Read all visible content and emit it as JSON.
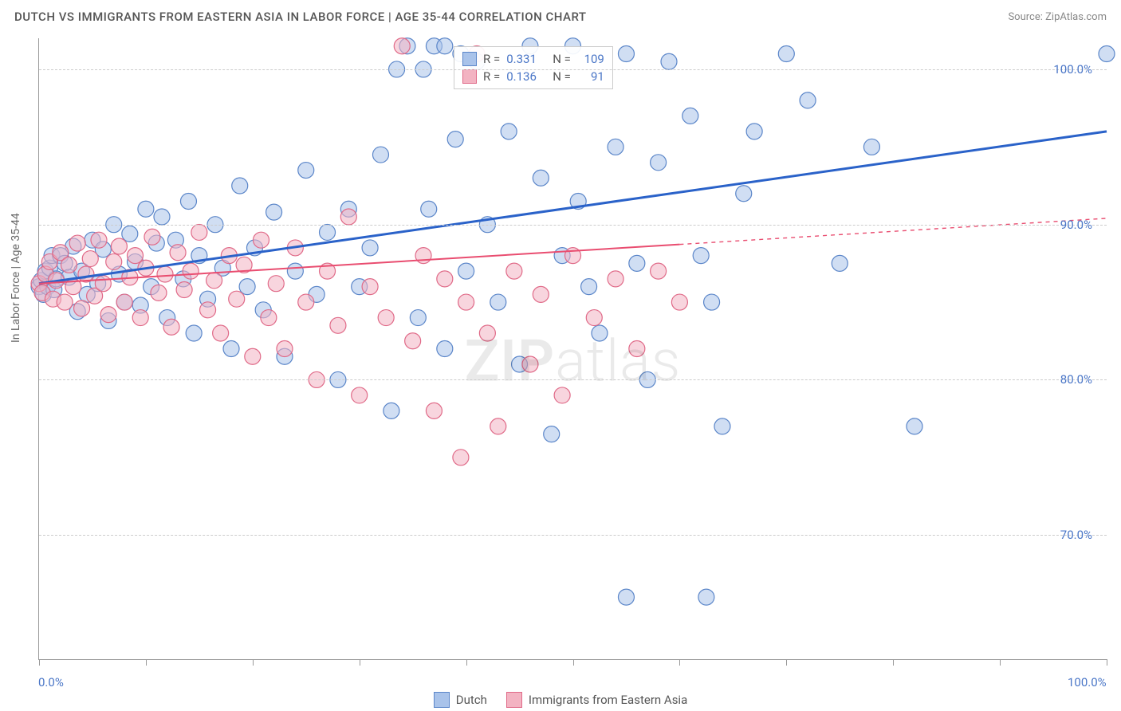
{
  "header": {
    "title": "DUTCH VS IMMIGRANTS FROM EASTERN ASIA IN LABOR FORCE | AGE 35-44 CORRELATION CHART",
    "source_label": "Source:",
    "source_name": "ZipAtlas.com"
  },
  "axes": {
    "y_label": "In Labor Force | Age 35-44",
    "x_min": 0,
    "x_max": 100,
    "y_min": 62,
    "y_max": 102,
    "x_ticks": [
      0,
      10,
      20,
      30,
      40,
      50,
      60,
      70,
      80,
      90,
      100
    ],
    "x_tick_labels": {
      "0": "0.0%",
      "100": "100.0%"
    },
    "y_gridlines": [
      70,
      80,
      90,
      100
    ],
    "y_tick_labels": {
      "70": "70.0%",
      "80": "80.0%",
      "90": "90.0%",
      "100": "100.0%"
    }
  },
  "watermark": {
    "prefix": "ZIP",
    "suffix": "atlas"
  },
  "series": [
    {
      "key": "dutch",
      "label": "Dutch",
      "fill": "#a9c3ea",
      "stroke": "#5b86c9",
      "fill_opacity": 0.55,
      "line_color": "#2a62c9",
      "line_width": 3,
      "R": "0.331",
      "N": "109",
      "trend": {
        "x1": 0,
        "y1": 86.2,
        "x2": 100,
        "y2": 96.0,
        "solid_to_x": 100
      },
      "points": [
        [
          0.0,
          86.0
        ],
        [
          0.2,
          86.4
        ],
        [
          0.4,
          85.5
        ],
        [
          0.6,
          87.0
        ],
        [
          0.8,
          86.0
        ],
        [
          1.0,
          87.2
        ],
        [
          1.2,
          88.0
        ],
        [
          1.4,
          85.8
        ],
        [
          1.6,
          86.5
        ],
        [
          2.0,
          88.0
        ],
        [
          2.4,
          87.5
        ],
        [
          2.8,
          86.6
        ],
        [
          3.2,
          88.6
        ],
        [
          3.6,
          84.4
        ],
        [
          4.0,
          87.0
        ],
        [
          4.5,
          85.5
        ],
        [
          5.0,
          89.0
        ],
        [
          5.5,
          86.2
        ],
        [
          6.0,
          88.4
        ],
        [
          6.5,
          83.8
        ],
        [
          7.0,
          90.0
        ],
        [
          7.5,
          86.8
        ],
        [
          8.0,
          85.0
        ],
        [
          8.5,
          89.4
        ],
        [
          9.0,
          87.6
        ],
        [
          9.5,
          84.8
        ],
        [
          10.0,
          91.0
        ],
        [
          10.5,
          86.0
        ],
        [
          11.0,
          88.8
        ],
        [
          11.5,
          90.5
        ],
        [
          12.0,
          84.0
        ],
        [
          12.8,
          89.0
        ],
        [
          13.5,
          86.5
        ],
        [
          14.0,
          91.5
        ],
        [
          14.5,
          83.0
        ],
        [
          15.0,
          88.0
        ],
        [
          15.8,
          85.2
        ],
        [
          16.5,
          90.0
        ],
        [
          17.2,
          87.2
        ],
        [
          18.0,
          82.0
        ],
        [
          18.8,
          92.5
        ],
        [
          19.5,
          86.0
        ],
        [
          20.2,
          88.5
        ],
        [
          21.0,
          84.5
        ],
        [
          22.0,
          90.8
        ],
        [
          23.0,
          81.5
        ],
        [
          24.0,
          87.0
        ],
        [
          25.0,
          93.5
        ],
        [
          26.0,
          85.5
        ],
        [
          27.0,
          89.5
        ],
        [
          28.0,
          80.0
        ],
        [
          29.0,
          91.0
        ],
        [
          30.0,
          86.0
        ],
        [
          31.0,
          88.5
        ],
        [
          32.0,
          94.5
        ],
        [
          33.0,
          78.0
        ],
        [
          33.5,
          100.0
        ],
        [
          34.5,
          101.5
        ],
        [
          35.5,
          84.0
        ],
        [
          36.0,
          100.0
        ],
        [
          36.5,
          91.0
        ],
        [
          37.0,
          101.5
        ],
        [
          38.0,
          82.0
        ],
        [
          38.0,
          101.5
        ],
        [
          39.0,
          95.5
        ],
        [
          39.5,
          101.0
        ],
        [
          40.0,
          87.0
        ],
        [
          41.0,
          100.5
        ],
        [
          42.0,
          90.0
        ],
        [
          43.0,
          85.0
        ],
        [
          44.0,
          96.0
        ],
        [
          45.0,
          81.0
        ],
        [
          46.0,
          101.5
        ],
        [
          47.0,
          93.0
        ],
        [
          48.0,
          76.5
        ],
        [
          49.0,
          88.0
        ],
        [
          50.0,
          101.5
        ],
        [
          50.5,
          91.5
        ],
        [
          51.5,
          86.0
        ],
        [
          52.5,
          83.0
        ],
        [
          54.0,
          95.0
        ],
        [
          55.0,
          101.0
        ],
        [
          56.0,
          87.5
        ],
        [
          57.0,
          80.0
        ],
        [
          58.0,
          94.0
        ],
        [
          59.0,
          100.5
        ],
        [
          61.0,
          97.0
        ],
        [
          62.0,
          88.0
        ],
        [
          63.0,
          85.0
        ],
        [
          64.0,
          77.0
        ],
        [
          66.0,
          92.0
        ],
        [
          67.0,
          96.0
        ],
        [
          70.0,
          101.0
        ],
        [
          72.0,
          98.0
        ],
        [
          75.0,
          87.5
        ],
        [
          78.0,
          95.0
        ],
        [
          82.0,
          77.0
        ],
        [
          100.0,
          101.0
        ],
        [
          55.0,
          66.0
        ],
        [
          62.5,
          66.0
        ]
      ]
    },
    {
      "key": "east_asia",
      "label": "Immigrants from Eastern Asia",
      "fill": "#f3b3c2",
      "stroke": "#e06a88",
      "fill_opacity": 0.55,
      "line_color": "#e94d70",
      "line_width": 2,
      "R": "0.136",
      "N": "91",
      "trend": {
        "x1": 0,
        "y1": 86.2,
        "x2": 100,
        "y2": 90.4,
        "solid_to_x": 60
      },
      "points": [
        [
          0.0,
          86.2
        ],
        [
          0.3,
          85.6
        ],
        [
          0.6,
          86.8
        ],
        [
          1.0,
          87.6
        ],
        [
          1.3,
          85.2
        ],
        [
          1.6,
          86.4
        ],
        [
          2.0,
          88.2
        ],
        [
          2.4,
          85.0
        ],
        [
          2.8,
          87.4
        ],
        [
          3.2,
          86.0
        ],
        [
          3.6,
          88.8
        ],
        [
          4.0,
          84.6
        ],
        [
          4.4,
          86.8
        ],
        [
          4.8,
          87.8
        ],
        [
          5.2,
          85.4
        ],
        [
          5.6,
          89.0
        ],
        [
          6.0,
          86.2
        ],
        [
          6.5,
          84.2
        ],
        [
          7.0,
          87.6
        ],
        [
          7.5,
          88.6
        ],
        [
          8.0,
          85.0
        ],
        [
          8.5,
          86.6
        ],
        [
          9.0,
          88.0
        ],
        [
          9.5,
          84.0
        ],
        [
          10.0,
          87.2
        ],
        [
          10.6,
          89.2
        ],
        [
          11.2,
          85.6
        ],
        [
          11.8,
          86.8
        ],
        [
          12.4,
          83.4
        ],
        [
          13.0,
          88.2
        ],
        [
          13.6,
          85.8
        ],
        [
          14.2,
          87.0
        ],
        [
          15.0,
          89.5
        ],
        [
          15.8,
          84.5
        ],
        [
          16.4,
          86.4
        ],
        [
          17.0,
          83.0
        ],
        [
          17.8,
          88.0
        ],
        [
          18.5,
          85.2
        ],
        [
          19.2,
          87.4
        ],
        [
          20.0,
          81.5
        ],
        [
          20.8,
          89.0
        ],
        [
          21.5,
          84.0
        ],
        [
          22.2,
          86.2
        ],
        [
          23.0,
          82.0
        ],
        [
          24.0,
          88.5
        ],
        [
          25.0,
          85.0
        ],
        [
          26.0,
          80.0
        ],
        [
          27.0,
          87.0
        ],
        [
          28.0,
          83.5
        ],
        [
          29.0,
          90.5
        ],
        [
          30.0,
          79.0
        ],
        [
          31.0,
          86.0
        ],
        [
          32.5,
          84.0
        ],
        [
          34.0,
          101.5
        ],
        [
          35.0,
          82.5
        ],
        [
          36.0,
          88.0
        ],
        [
          37.0,
          78.0
        ],
        [
          38.0,
          86.5
        ],
        [
          39.5,
          75.0
        ],
        [
          40.0,
          85.0
        ],
        [
          41.0,
          101.0
        ],
        [
          42.0,
          83.0
        ],
        [
          43.0,
          77.0
        ],
        [
          44.5,
          87.0
        ],
        [
          46.0,
          81.0
        ],
        [
          47.0,
          85.5
        ],
        [
          49.0,
          79.0
        ],
        [
          50.0,
          88.0
        ],
        [
          52.0,
          84.0
        ],
        [
          54.0,
          86.5
        ],
        [
          56.0,
          82.0
        ],
        [
          58.0,
          87.0
        ],
        [
          60.0,
          85.0
        ]
      ]
    }
  ],
  "style": {
    "marker_radius": 10,
    "marker_stroke_width": 1.2,
    "background": "#ffffff",
    "grid_color": "#cccccc",
    "axis_color": "#999999",
    "tick_label_color": "#4a76c7",
    "title_color": "#555555",
    "title_fontsize": 15,
    "tick_fontsize": 15
  }
}
